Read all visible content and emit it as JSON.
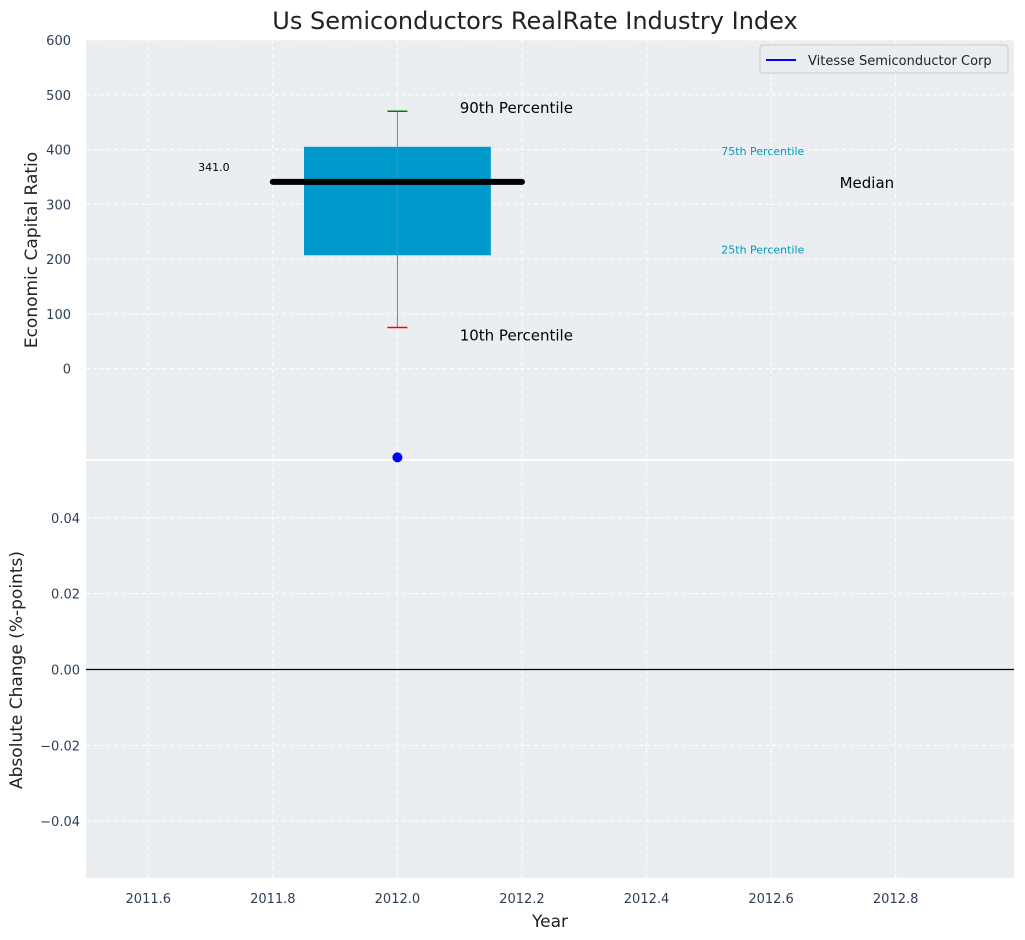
{
  "chart_data": {
    "type": "box",
    "title": "Us Semiconductors RealRate Industry Index",
    "xlabel": "Year",
    "panels": [
      {
        "ylabel": "Economic Capital Ratio",
        "ylim": [
          -165,
          600
        ],
        "yticks": [
          0,
          100,
          200,
          300,
          400,
          500,
          600
        ],
        "box": {
          "x": 2012.0,
          "p10": 75,
          "p25": 207,
          "median": 341,
          "p75": 405,
          "p90": 470
        },
        "median_value_label": "341.0",
        "point_series": {
          "name": "Vitesse Semiconductor Corp",
          "x": [
            2012.0
          ],
          "y": [
            -162
          ],
          "color": "#0000ff"
        },
        "annotations": {
          "p90": "90th Percentile",
          "p75": "75th Percentile",
          "median": "Median",
          "p25": "25th Percentile",
          "p10": "10th Percentile"
        },
        "legend": {
          "entries": [
            "Vitesse Semiconductor Corp"
          ],
          "placement": "top-right"
        }
      },
      {
        "ylabel": "Absolute Change (%-points)",
        "ylim": [
          -0.055,
          0.055
        ],
        "yticks": [
          -0.04,
          -0.02,
          0.0,
          0.02,
          0.04
        ],
        "ytick_labels": [
          "−0.04",
          "−0.02",
          "0.00",
          "0.02",
          "0.04"
        ],
        "zero_line": 0.0
      }
    ],
    "xlim": [
      2011.5,
      2012.99
    ],
    "xticks": [
      2011.6,
      2011.8,
      2012.0,
      2012.2,
      2012.4,
      2012.6,
      2012.8
    ],
    "xtick_labels": [
      "2011.6",
      "2011.8",
      "2012.0",
      "2012.2",
      "2012.4",
      "2012.6",
      "2012.8"
    ],
    "grid": true,
    "colors": {
      "background": "#eaeef0",
      "box": "#0099cc",
      "median": "#000000",
      "p90_cap": "#008000",
      "p10_cap": "#ff0000",
      "whisker": "#808080",
      "point": "#0000ff",
      "annot_teal": "#0099bb",
      "grid": "#ffffff"
    }
  }
}
